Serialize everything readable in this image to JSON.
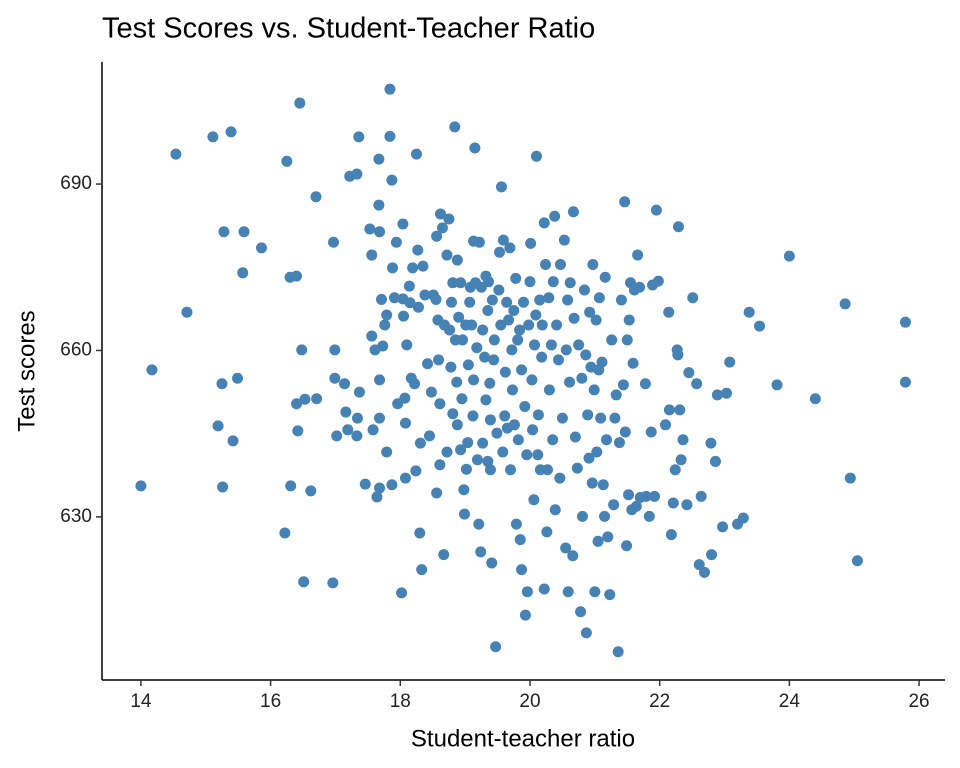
{
  "chart_data": {
    "type": "scatter",
    "title": "Test Scores vs. Student-Teacher Ratio",
    "x_label": "Student-teacher ratio",
    "y_label": "Test scores",
    "color": "#4682b4",
    "grid": false,
    "xlim": [
      13.4,
      26.4
    ],
    "ylim": [
      600.6,
      712
    ],
    "xticks": [
      14,
      16,
      18,
      20,
      22,
      24,
      26
    ],
    "yticks": [
      630,
      660,
      690
    ],
    "x": [
      14.0,
      14.17,
      14.54,
      14.71,
      15.11,
      15.39,
      15.19,
      15.25,
      15.26,
      15.28,
      15.42,
      15.49,
      15.59,
      15.57,
      15.86,
      16.22,
      16.25,
      16.3,
      16.31,
      16.4,
      16.4,
      16.42,
      16.45,
      16.48,
      16.51,
      16.53,
      16.62,
      16.7,
      16.71,
      16.96,
      16.97,
      16.99,
      16.99,
      17.02,
      17.14,
      17.16,
      17.19,
      17.22,
      17.33,
      17.36,
      17.34,
      17.33,
      17.37,
      17.46,
      17.53,
      17.56,
      17.56,
      17.58,
      17.61,
      17.64,
      17.67,
      17.67,
      17.68,
      17.68,
      17.68,
      17.68,
      17.71,
      17.73,
      17.76,
      17.79,
      17.79,
      17.84,
      17.84,
      17.87,
      17.87,
      17.88,
      17.91,
      17.94,
      17.96,
      18.02,
      18.04,
      18.04,
      18.05,
      18.07,
      18.08,
      18.08,
      18.1,
      18.14,
      18.15,
      18.17,
      18.19,
      18.22,
      18.24,
      18.25,
      18.27,
      18.28,
      18.3,
      18.31,
      18.33,
      18.35,
      18.38,
      18.42,
      18.45,
      18.48,
      18.51,
      18.55,
      18.56,
      18.56,
      18.58,
      18.59,
      18.61,
      18.61,
      18.62,
      18.65,
      18.67,
      18.68,
      18.72,
      18.72,
      18.75,
      18.76,
      18.78,
      18.79,
      18.81,
      18.81,
      18.84,
      18.85,
      18.87,
      18.88,
      18.88,
      18.9,
      18.93,
      18.93,
      18.95,
      18.96,
      18.98,
      18.99,
      19.01,
      19.02,
      19.04,
      19.05,
      19.07,
      19.08,
      19.1,
      19.12,
      19.13,
      19.13,
      19.15,
      19.16,
      19.18,
      19.19,
      19.21,
      19.22,
      19.24,
      19.25,
      19.27,
      19.27,
      19.3,
      19.32,
      19.32,
      19.35,
      19.35,
      19.36,
      19.38,
      19.39,
      19.39,
      19.41,
      19.42,
      19.44,
      19.45,
      19.47,
      19.49,
      19.52,
      19.53,
      19.55,
      19.56,
      19.58,
      19.59,
      19.61,
      19.62,
      19.64,
      19.65,
      19.67,
      19.69,
      19.7,
      19.72,
      19.73,
      19.75,
      19.76,
      19.78,
      19.79,
      19.81,
      19.82,
      19.84,
      19.85,
      19.87,
      19.87,
      19.9,
      19.92,
      19.93,
      19.95,
      19.96,
      19.98,
      20.0,
      20.01,
      20.03,
      20.04,
      20.06,
      20.07,
      20.09,
      20.1,
      20.12,
      20.13,
      20.15,
      20.16,
      20.18,
      20.19,
      20.22,
      20.22,
      20.24,
      20.26,
      20.27,
      20.29,
      20.3,
      20.33,
      20.35,
      20.36,
      20.38,
      20.39,
      20.41,
      20.44,
      20.46,
      20.47,
      20.5,
      20.53,
      20.55,
      20.56,
      20.58,
      20.59,
      20.61,
      20.62,
      20.66,
      20.67,
      20.68,
      20.7,
      20.73,
      20.75,
      20.78,
      20.8,
      20.81,
      20.84,
      20.86,
      20.87,
      20.89,
      20.91,
      20.92,
      20.94,
      20.96,
      20.97,
      20.99,
      21.0,
      21.02,
      21.03,
      21.05,
      21.06,
      21.07,
      21.09,
      21.11,
      21.13,
      21.15,
      21.16,
      21.18,
      21.2,
      21.23,
      21.26,
      21.29,
      21.31,
      21.33,
      21.36,
      21.38,
      21.41,
      21.44,
      21.46,
      21.47,
      21.49,
      21.5,
      21.52,
      21.53,
      21.55,
      21.57,
      21.59,
      21.61,
      21.64,
      21.66,
      21.69,
      21.7,
      21.78,
      21.79,
      21.84,
      21.87,
      21.89,
      21.92,
      21.95,
      21.98,
      22.09,
      22.14,
      22.15,
      22.18,
      22.21,
      22.24,
      22.27,
      22.28,
      22.29,
      22.31,
      22.33,
      22.36,
      22.42,
      22.45,
      22.51,
      22.57,
      22.61,
      22.64,
      22.69,
      22.79,
      22.8,
      22.86,
      22.89,
      22.97,
      23.03,
      23.08,
      23.2,
      23.29,
      23.38,
      23.54,
      23.81,
      24.0,
      24.4,
      24.86,
      24.94,
      25.05,
      25.79,
      25.79
    ],
    "y": [
      635.6,
      656.5,
      695.4,
      666.9,
      698.5,
      699.4,
      646.4,
      654.0,
      635.4,
      681.4,
      643.7,
      655.0,
      681.4,
      674.0,
      678.5,
      627.1,
      694.1,
      673.2,
      635.6,
      673.4,
      650.4,
      645.5,
      704.6,
      660.1,
      618.3,
      651.2,
      634.7,
      687.7,
      651.3,
      618.1,
      679.5,
      660.1,
      655.0,
      644.6,
      654.0,
      648.9,
      645.7,
      691.4,
      691.8,
      698.5,
      647.8,
      644.6,
      652.5,
      635.9,
      681.9,
      677.2,
      662.6,
      645.7,
      660.1,
      633.6,
      694.5,
      686.2,
      681.4,
      654.7,
      647.8,
      635.2,
      669.2,
      660.8,
      664.6,
      666.4,
      641.7,
      698.6,
      707.1,
      690.7,
      635.8,
      674.9,
      669.5,
      679.5,
      650.4,
      616.3,
      682.8,
      669.3,
      666.2,
      651.4,
      637.0,
      646.9,
      661.0,
      671.6,
      668.6,
      655.0,
      674.9,
      654.0,
      638.3,
      695.4,
      678.1,
      667.8,
      627.1,
      643.3,
      620.5,
      675.2,
      670.0,
      657.6,
      644.6,
      652.5,
      670.0,
      669.2,
      680.6,
      634.3,
      665.5,
      658.3,
      650.4,
      639.4,
      684.6,
      682.1,
      623.2,
      664.6,
      677.2,
      641.7,
      683.7,
      663.7,
      657.0,
      668.7,
      672.2,
      648.6,
      700.3,
      661.9,
      654.3,
      676.3,
      646.6,
      666.0,
      642.1,
      672.2,
      651.3,
      661.9,
      634.9,
      630.5,
      664.6,
      638.6,
      643.4,
      657.4,
      668.7,
      671.4,
      664.6,
      648.2,
      654.7,
      679.7,
      696.5,
      672.2,
      660.5,
      640.3,
      628.7,
      679.5,
      623.7,
      671.4,
      663.7,
      643.3,
      658.8,
      651.1,
      673.4,
      667.2,
      640.0,
      672.4,
      654.1,
      647.5,
      638.5,
      621.7,
      669.1,
      658.3,
      661.9,
      606.6,
      645.1,
      670.9,
      677.7,
      664.6,
      689.5,
      641.7,
      679.9,
      648.2,
      656.1,
      668.7,
      646.0,
      665.5,
      678.5,
      638.5,
      660.1,
      652.9,
      667.2,
      646.6,
      673.0,
      628.7,
      661.9,
      643.9,
      663.7,
      625.9,
      620.5,
      656.5,
      668.7,
      649.9,
      612.3,
      641.2,
      616.5,
      664.6,
      672.4,
      679.3,
      654.7,
      645.7,
      633.1,
      661.0,
      666.4,
      695.0,
      641.2,
      648.4,
      669.1,
      638.5,
      658.8,
      664.6,
      617.0,
      683.0,
      675.5,
      627.3,
      638.5,
      669.5,
      652.9,
      661.0,
      643.9,
      672.4,
      684.2,
      631.3,
      664.6,
      658.3,
      637.0,
      675.5,
      647.8,
      679.9,
      624.4,
      660.1,
      669.1,
      616.5,
      654.3,
      672.2,
      623.0,
      685.0,
      665.8,
      644.4,
      638.8,
      661.0,
      612.9,
      655.0,
      630.1,
      670.9,
      659.2,
      609.1,
      648.4,
      640.6,
      666.9,
      657.0,
      636.1,
      675.5,
      652.9,
      616.5,
      665.5,
      641.7,
      625.6,
      656.5,
      669.5,
      647.8,
      657.9,
      635.8,
      630.1,
      673.2,
      643.9,
      626.4,
      616.0,
      661.9,
      632.2,
      647.8,
      652.0,
      605.7,
      643.4,
      669.1,
      653.8,
      686.8,
      645.3,
      624.8,
      661.9,
      634.0,
      665.5,
      672.2,
      631.3,
      657.7,
      670.9,
      631.9,
      677.2,
      671.4,
      633.5,
      654.0,
      633.7,
      630.1,
      645.3,
      671.8,
      633.7,
      685.3,
      672.5,
      646.6,
      666.9,
      649.3,
      626.8,
      632.5,
      638.5,
      660.1,
      659.2,
      682.3,
      649.3,
      640.3,
      643.9,
      632.2,
      656.0,
      669.5,
      654.0,
      621.4,
      633.7,
      620.0,
      643.3,
      623.2,
      640.0,
      652.0,
      628.2,
      652.3,
      657.9,
      628.7,
      629.8,
      666.9,
      664.4,
      653.8,
      677.0,
      651.3,
      668.4,
      637.0,
      622.1,
      665.1,
      654.3
    ]
  }
}
